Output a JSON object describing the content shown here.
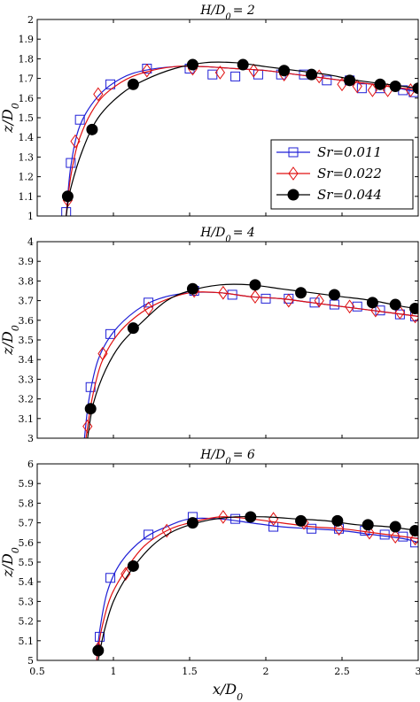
{
  "figure": {
    "xlabel_main": "x/D",
    "xlabel_sub": "0",
    "x_ticks": [
      "0.5",
      "1",
      "1.5",
      "2",
      "2.5",
      "3"
    ]
  },
  "colors": {
    "blue": "#1f1fd6",
    "red": "#e01010",
    "black": "#000000"
  },
  "chart_data": [
    {
      "type": "line",
      "title_main": "H/D",
      "title_sub": "0",
      "title_rest": "= 2",
      "ylabel_main": "z/D",
      "ylabel_sub": "0",
      "xlim": [
        0.5,
        3.0
      ],
      "ylim": [
        1.0,
        2.0
      ],
      "y_ticks": [
        "1",
        "1.1",
        "1.2",
        "1.3",
        "1.4",
        "1.5",
        "1.6",
        "1.7",
        "1.8",
        "1.9",
        "2"
      ],
      "legend": {
        "placement": "right",
        "entries": [
          {
            "label": "Sr=0.011",
            "series": 0
          },
          {
            "label": "Sr=0.022",
            "series": 1
          },
          {
            "label": "Sr=0.044",
            "series": 2
          }
        ]
      },
      "series": [
        {
          "name": "Sr=0.011",
          "marker": "square",
          "color": "blue",
          "points": [
            [
              0.69,
              1.02
            ],
            [
              0.72,
              1.27
            ],
            [
              0.78,
              1.49
            ],
            [
              0.98,
              1.67
            ],
            [
              1.22,
              1.75
            ],
            [
              1.5,
              1.75
            ],
            [
              1.65,
              1.72
            ],
            [
              1.8,
              1.71
            ],
            [
              1.95,
              1.72
            ],
            [
              2.1,
              1.72
            ],
            [
              2.25,
              1.72
            ],
            [
              2.4,
              1.69
            ],
            [
              2.55,
              1.69
            ],
            [
              2.63,
              1.65
            ],
            [
              2.75,
              1.65
            ],
            [
              2.9,
              1.64
            ],
            [
              2.97,
              1.63
            ]
          ],
          "curve": [
            [
              0.69,
              1.0
            ],
            [
              0.72,
              1.25
            ],
            [
              0.78,
              1.46
            ],
            [
              0.9,
              1.61
            ],
            [
              1.05,
              1.7
            ],
            [
              1.2,
              1.74
            ],
            [
              1.4,
              1.76
            ],
            [
              1.6,
              1.76
            ],
            [
              1.8,
              1.75
            ],
            [
              2.0,
              1.74
            ],
            [
              2.2,
              1.72
            ],
            [
              2.4,
              1.7
            ],
            [
              2.6,
              1.68
            ],
            [
              2.8,
              1.66
            ],
            [
              3.0,
              1.63
            ]
          ]
        },
        {
          "name": "Sr=0.022",
          "marker": "diamond",
          "color": "red",
          "points": [
            [
              0.7,
              1.08
            ],
            [
              0.75,
              1.38
            ],
            [
              0.9,
              1.62
            ],
            [
              1.22,
              1.74
            ],
            [
              1.52,
              1.75
            ],
            [
              1.7,
              1.73
            ],
            [
              1.92,
              1.74
            ],
            [
              2.12,
              1.72
            ],
            [
              2.35,
              1.71
            ],
            [
              2.5,
              1.67
            ],
            [
              2.6,
              1.66
            ],
            [
              2.7,
              1.64
            ],
            [
              2.8,
              1.64
            ],
            [
              2.95,
              1.64
            ]
          ],
          "curve": [
            [
              0.69,
              1.0
            ],
            [
              0.72,
              1.2
            ],
            [
              0.78,
              1.4
            ],
            [
              0.9,
              1.58
            ],
            [
              1.05,
              1.68
            ],
            [
              1.2,
              1.73
            ],
            [
              1.4,
              1.76
            ],
            [
              1.6,
              1.76
            ],
            [
              1.8,
              1.75
            ],
            [
              2.0,
              1.74
            ],
            [
              2.2,
              1.72
            ],
            [
              2.4,
              1.7
            ],
            [
              2.6,
              1.68
            ],
            [
              2.8,
              1.66
            ],
            [
              3.0,
              1.64
            ]
          ]
        },
        {
          "name": "Sr=0.044",
          "marker": "circle",
          "color": "black",
          "points": [
            [
              0.7,
              1.1
            ],
            [
              0.86,
              1.44
            ],
            [
              1.13,
              1.67
            ],
            [
              1.52,
              1.77
            ],
            [
              1.85,
              1.77
            ],
            [
              2.12,
              1.74
            ],
            [
              2.3,
              1.72
            ],
            [
              2.55,
              1.69
            ],
            [
              2.75,
              1.67
            ],
            [
              2.85,
              1.66
            ],
            [
              3.0,
              1.65
            ]
          ],
          "curve": [
            [
              0.69,
              1.0
            ],
            [
              0.72,
              1.14
            ],
            [
              0.8,
              1.34
            ],
            [
              0.9,
              1.5
            ],
            [
              1.05,
              1.62
            ],
            [
              1.2,
              1.69
            ],
            [
              1.4,
              1.75
            ],
            [
              1.6,
              1.78
            ],
            [
              1.8,
              1.78
            ],
            [
              2.0,
              1.76
            ],
            [
              2.2,
              1.74
            ],
            [
              2.4,
              1.72
            ],
            [
              2.6,
              1.69
            ],
            [
              2.8,
              1.67
            ],
            [
              3.0,
              1.65
            ]
          ]
        }
      ]
    },
    {
      "type": "line",
      "title_main": "H/D",
      "title_sub": "0",
      "title_rest": "= 4",
      "ylabel_main": "z/D",
      "ylabel_sub": "0",
      "xlim": [
        0.5,
        3.0
      ],
      "ylim": [
        3.0,
        4.0
      ],
      "y_ticks": [
        "3",
        "3.1",
        "3.2",
        "3.3",
        "3.4",
        "3.5",
        "3.6",
        "3.7",
        "3.8",
        "3.9",
        "4"
      ],
      "series": [
        {
          "name": "Sr=0.011",
          "marker": "square",
          "color": "blue",
          "points": [
            [
              0.85,
              3.26
            ],
            [
              0.98,
              3.53
            ],
            [
              1.23,
              3.69
            ],
            [
              1.53,
              3.75
            ],
            [
              1.78,
              3.73
            ],
            [
              2.0,
              3.71
            ],
            [
              2.15,
              3.71
            ],
            [
              2.32,
              3.69
            ],
            [
              2.45,
              3.68
            ],
            [
              2.6,
              3.67
            ],
            [
              2.75,
              3.65
            ],
            [
              2.88,
              3.63
            ],
            [
              2.98,
              3.62
            ]
          ],
          "curve": [
            [
              0.81,
              3.0
            ],
            [
              0.84,
              3.2
            ],
            [
              0.9,
              3.4
            ],
            [
              1.0,
              3.54
            ],
            [
              1.15,
              3.65
            ],
            [
              1.3,
              3.71
            ],
            [
              1.5,
              3.74
            ],
            [
              1.7,
              3.74
            ],
            [
              1.9,
              3.72
            ],
            [
              2.1,
              3.71
            ],
            [
              2.3,
              3.69
            ],
            [
              2.5,
              3.67
            ],
            [
              2.7,
              3.65
            ],
            [
              2.9,
              3.63
            ],
            [
              3.0,
              3.62
            ]
          ]
        },
        {
          "name": "Sr=0.022",
          "marker": "diamond",
          "color": "red",
          "points": [
            [
              0.83,
              3.06
            ],
            [
              0.93,
              3.43
            ],
            [
              1.23,
              3.66
            ],
            [
              1.53,
              3.75
            ],
            [
              1.72,
              3.74
            ],
            [
              1.93,
              3.72
            ],
            [
              2.15,
              3.7
            ],
            [
              2.35,
              3.7
            ],
            [
              2.55,
              3.67
            ],
            [
              2.72,
              3.65
            ],
            [
              2.88,
              3.64
            ],
            [
              2.98,
              3.62
            ]
          ],
          "curve": [
            [
              0.82,
              3.0
            ],
            [
              0.86,
              3.2
            ],
            [
              0.92,
              3.38
            ],
            [
              1.02,
              3.52
            ],
            [
              1.15,
              3.62
            ],
            [
              1.3,
              3.69
            ],
            [
              1.5,
              3.74
            ],
            [
              1.7,
              3.74
            ],
            [
              1.9,
              3.72
            ],
            [
              2.1,
              3.71
            ],
            [
              2.3,
              3.69
            ],
            [
              2.5,
              3.67
            ],
            [
              2.7,
              3.65
            ],
            [
              2.9,
              3.63
            ],
            [
              3.0,
              3.62
            ]
          ]
        },
        {
          "name": "Sr=0.044",
          "marker": "circle",
          "color": "black",
          "points": [
            [
              0.85,
              3.15
            ],
            [
              1.13,
              3.56
            ],
            [
              1.52,
              3.76
            ],
            [
              1.93,
              3.78
            ],
            [
              2.23,
              3.74
            ],
            [
              2.45,
              3.73
            ],
            [
              2.7,
              3.69
            ],
            [
              2.85,
              3.68
            ],
            [
              2.98,
              3.66
            ]
          ],
          "curve": [
            [
              0.83,
              3.0
            ],
            [
              0.87,
              3.18
            ],
            [
              0.95,
              3.35
            ],
            [
              1.05,
              3.48
            ],
            [
              1.2,
              3.6
            ],
            [
              1.35,
              3.7
            ],
            [
              1.5,
              3.75
            ],
            [
              1.7,
              3.78
            ],
            [
              1.9,
              3.78
            ],
            [
              2.1,
              3.76
            ],
            [
              2.3,
              3.74
            ],
            [
              2.5,
              3.72
            ],
            [
              2.7,
              3.7
            ],
            [
              2.9,
              3.67
            ],
            [
              3.0,
              3.66
            ]
          ]
        }
      ]
    },
    {
      "type": "line",
      "title_main": "H/D",
      "title_sub": "0",
      "title_rest": "= 6",
      "ylabel_main": "z/D",
      "ylabel_sub": "0",
      "xlim": [
        0.5,
        3.0
      ],
      "ylim": [
        5.0,
        6.0
      ],
      "y_ticks": [
        "5",
        "5.1",
        "5.2",
        "5.3",
        "5.4",
        "5.5",
        "5.6",
        "5.7",
        "5.8",
        "5.9",
        "6"
      ],
      "series": [
        {
          "name": "Sr=0.011",
          "marker": "square",
          "color": "blue",
          "points": [
            [
              0.91,
              5.12
            ],
            [
              0.98,
              5.42
            ],
            [
              1.23,
              5.64
            ],
            [
              1.52,
              5.73
            ],
            [
              1.8,
              5.72
            ],
            [
              2.05,
              5.68
            ],
            [
              2.3,
              5.67
            ],
            [
              2.48,
              5.67
            ],
            [
              2.65,
              5.66
            ],
            [
              2.78,
              5.64
            ],
            [
              2.9,
              5.63
            ],
            [
              2.98,
              5.6
            ]
          ],
          "curve": [
            [
              0.89,
              5.0
            ],
            [
              0.91,
              5.15
            ],
            [
              0.96,
              5.35
            ],
            [
              1.05,
              5.5
            ],
            [
              1.2,
              5.62
            ],
            [
              1.35,
              5.68
            ],
            [
              1.5,
              5.72
            ],
            [
              1.7,
              5.72
            ],
            [
              1.9,
              5.7
            ],
            [
              2.1,
              5.68
            ],
            [
              2.3,
              5.67
            ],
            [
              2.5,
              5.66
            ],
            [
              2.7,
              5.64
            ],
            [
              2.9,
              5.62
            ],
            [
              3.0,
              5.6
            ]
          ]
        },
        {
          "name": "Sr=0.022",
          "marker": "diamond",
          "color": "red",
          "points": [
            [
              0.9,
              5.06
            ],
            [
              1.08,
              5.44
            ],
            [
              1.35,
              5.66
            ],
            [
              1.72,
              5.73
            ],
            [
              2.05,
              5.72
            ],
            [
              2.25,
              5.7
            ],
            [
              2.48,
              5.67
            ],
            [
              2.68,
              5.65
            ],
            [
              2.85,
              5.63
            ],
            [
              2.98,
              5.62
            ]
          ],
          "curve": [
            [
              0.89,
              5.0
            ],
            [
              0.92,
              5.15
            ],
            [
              0.98,
              5.32
            ],
            [
              1.08,
              5.46
            ],
            [
              1.2,
              5.58
            ],
            [
              1.35,
              5.66
            ],
            [
              1.5,
              5.7
            ],
            [
              1.7,
              5.73
            ],
            [
              1.9,
              5.72
            ],
            [
              2.1,
              5.7
            ],
            [
              2.3,
              5.68
            ],
            [
              2.5,
              5.67
            ],
            [
              2.7,
              5.65
            ],
            [
              2.9,
              5.63
            ],
            [
              3.0,
              5.62
            ]
          ]
        },
        {
          "name": "Sr=0.044",
          "marker": "circle",
          "color": "black",
          "points": [
            [
              0.9,
              5.05
            ],
            [
              1.13,
              5.48
            ],
            [
              1.52,
              5.7
            ],
            [
              1.9,
              5.73
            ],
            [
              2.23,
              5.71
            ],
            [
              2.47,
              5.71
            ],
            [
              2.67,
              5.69
            ],
            [
              2.85,
              5.68
            ],
            [
              2.98,
              5.66
            ]
          ],
          "curve": [
            [
              0.9,
              5.0
            ],
            [
              0.94,
              5.15
            ],
            [
              1.0,
              5.3
            ],
            [
              1.1,
              5.44
            ],
            [
              1.25,
              5.58
            ],
            [
              1.4,
              5.66
            ],
            [
              1.6,
              5.71
            ],
            [
              1.8,
              5.73
            ],
            [
              2.0,
              5.73
            ],
            [
              2.2,
              5.72
            ],
            [
              2.4,
              5.71
            ],
            [
              2.6,
              5.69
            ],
            [
              2.8,
              5.68
            ],
            [
              3.0,
              5.66
            ]
          ]
        }
      ]
    }
  ]
}
